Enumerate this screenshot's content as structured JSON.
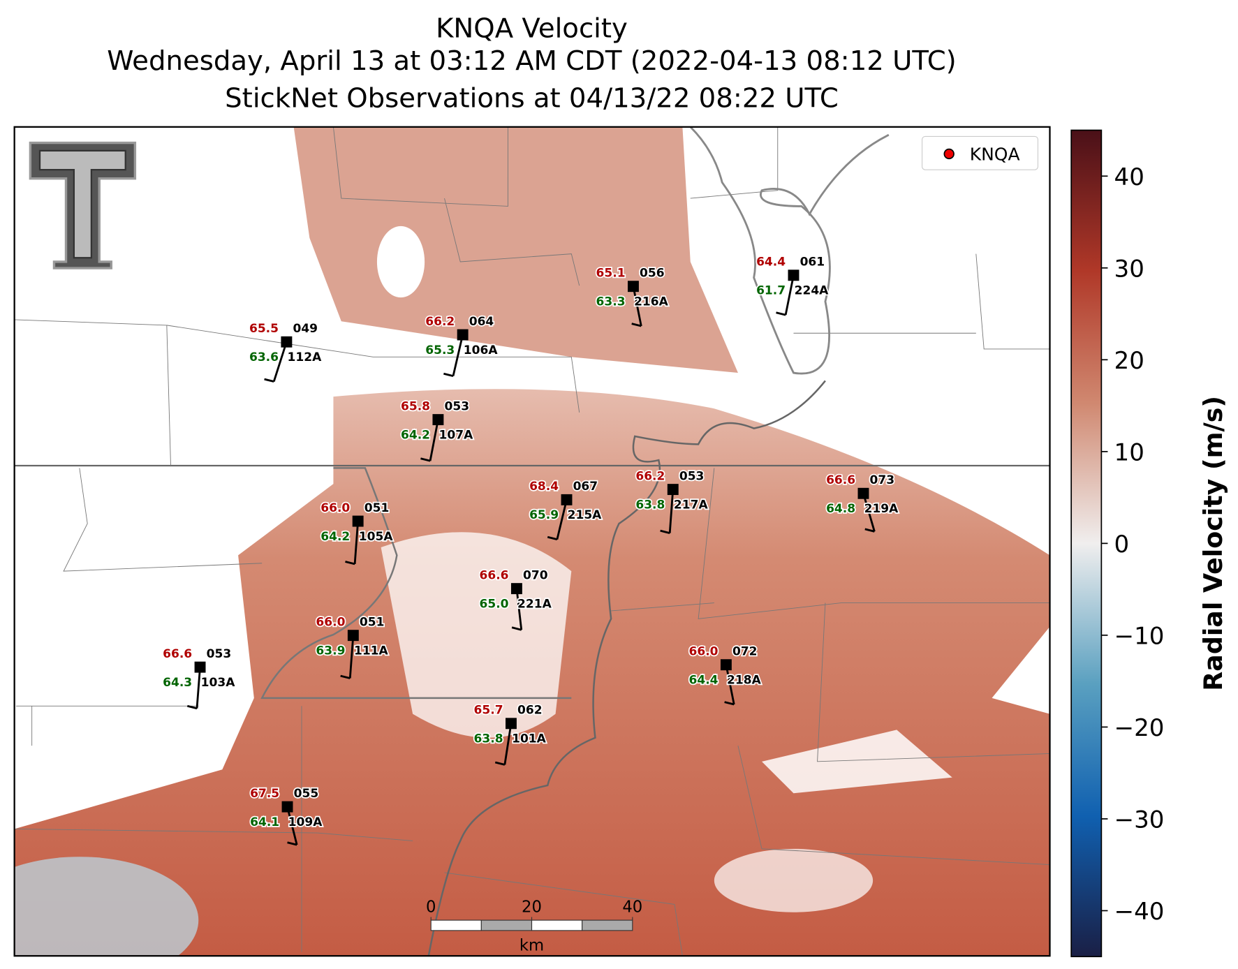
{
  "title": [
    "KNQA Velocity",
    "Wednesday, April 13 at 03:12 AM CDT (2022-04-13 08:12 UTC)",
    "StickNet Observations at 04/13/22 08:22 UTC"
  ],
  "legend": "KNQA",
  "colorbar": {
    "label": "Radial Velocity (m/s)",
    "lim": [
      -45,
      45
    ],
    "ticks": [
      {
        "value": -40,
        "label": "−40"
      },
      {
        "value": -30,
        "label": "−30"
      },
      {
        "value": -20,
        "label": "−20"
      },
      {
        "value": -10,
        "label": "−10"
      },
      0,
      10,
      20,
      30,
      40
    ]
  },
  "scale_bar": {
    "ticks": [
      0,
      20,
      40
    ],
    "unit": "km"
  },
  "stations": [
    {
      "id": "112A",
      "code": "049",
      "temp": "65.5",
      "dew": "63.6"
    },
    {
      "id": "106A",
      "code": "064",
      "temp": "66.2",
      "dew": "65.3"
    },
    {
      "id": "216A",
      "code": "056",
      "temp": "65.1",
      "dew": "63.3"
    },
    {
      "id": "224A",
      "code": "061",
      "temp": "64.4",
      "dew": "61.7"
    },
    {
      "id": "107A",
      "code": "053",
      "temp": "65.8",
      "dew": "64.2"
    },
    {
      "id": "105A",
      "code": "051",
      "temp": "66.0",
      "dew": "64.2"
    },
    {
      "id": "215A",
      "code": "067",
      "temp": "68.4",
      "dew": "65.9"
    },
    {
      "id": "217A",
      "code": "053",
      "temp": "66.2",
      "dew": "63.8"
    },
    {
      "id": "219A",
      "code": "073",
      "temp": "66.6",
      "dew": "64.8"
    },
    {
      "id": "221A",
      "code": "070",
      "temp": "66.6",
      "dew": "65.0"
    },
    {
      "id": "111A",
      "code": "051",
      "temp": "66.0",
      "dew": "63.9"
    },
    {
      "id": "103A",
      "code": "053",
      "temp": "66.6",
      "dew": "64.3"
    },
    {
      "id": "218A",
      "code": "072",
      "temp": "66.0",
      "dew": "64.4"
    },
    {
      "id": "101A",
      "code": "062",
      "temp": "65.7",
      "dew": "63.8"
    },
    {
      "id": "109A",
      "code": "055",
      "temp": "67.5",
      "dew": "64.1"
    }
  ]
}
